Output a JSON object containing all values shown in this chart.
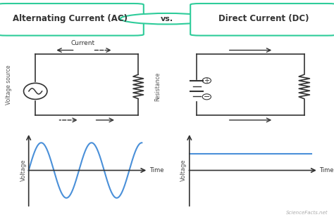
{
  "title_ac": "Alternating Current (AC)",
  "title_dc": "Direct Current (DC)",
  "vs_text": "vs.",
  "title_border_color": "#2ecc9a",
  "bg_color": "#ffffff",
  "circuit_line_color": "#333333",
  "wave_color": "#4a90d9",
  "dc_line_color": "#4a90d9",
  "axis_line_color": "#333333",
  "label_color": "#555555",
  "voltage_label": "Voltage source",
  "resistance_label": "Resistance",
  "voltage_axis_label": "Voltage",
  "time_label": "Time",
  "current_label": "Current",
  "figsize": [
    4.74,
    3.09
  ],
  "dpi": 100
}
